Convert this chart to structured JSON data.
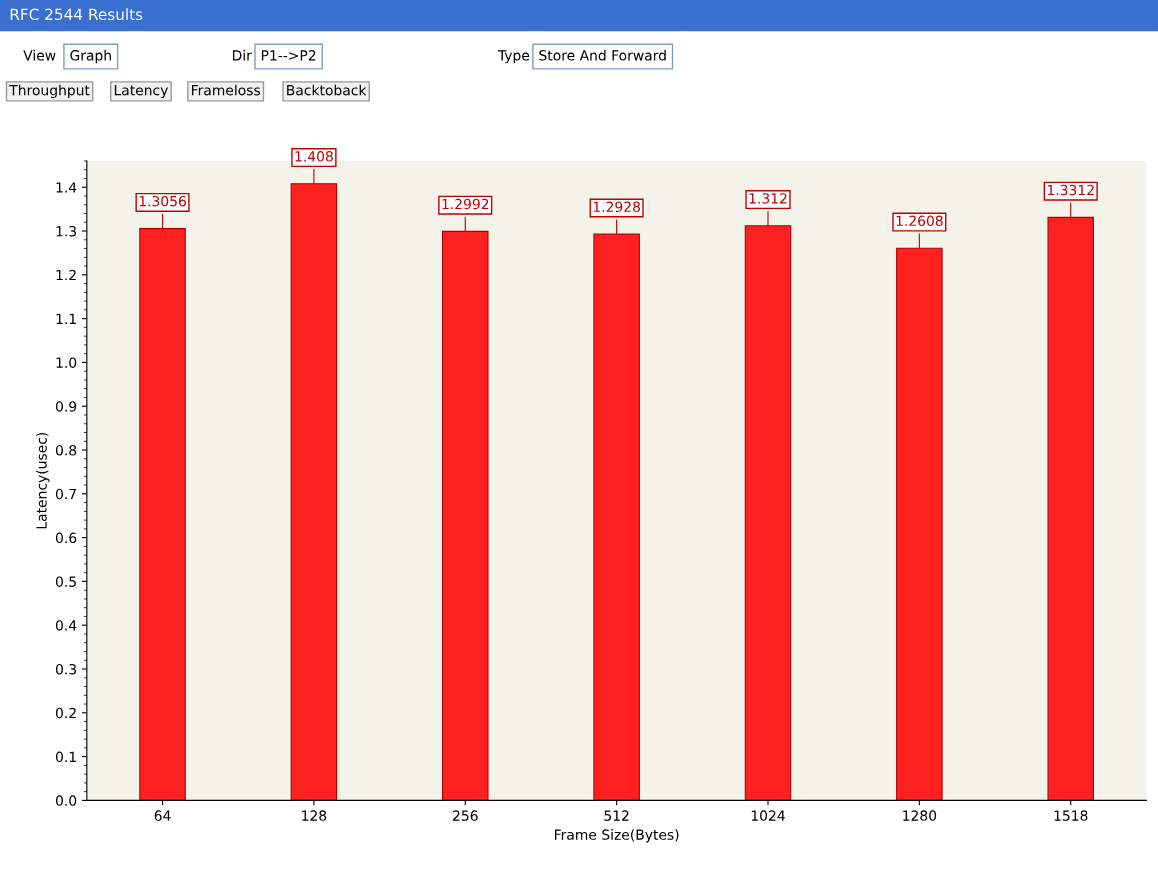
{
  "chart_data": {
    "type": "bar",
    "title": "RFC 2544 Results",
    "annotations": [
      "View",
      "Graph",
      "Dir",
      "P1-->P2",
      "Type",
      "Store And Forward",
      "Throughput",
      "Latency",
      "Frameloss",
      "Backtoback"
    ],
    "xlabel": "Frame Size(Bytes)",
    "ylabel": "Latency(usec)",
    "categories": [
      "64",
      "128",
      "256",
      "512",
      "1024",
      "1280",
      "1518"
    ],
    "values": [
      1.3056,
      1.408,
      1.2992,
      1.2928,
      1.312,
      1.2608,
      1.3312
    ],
    "color": "#ff2020",
    "data_labels": true,
    "grid": false,
    "ylim": [
      0,
      1.46
    ],
    "yticks": [
      {
        "value": 0,
        "label": "0.0"
      },
      0.1,
      0.2,
      0.3,
      0.4,
      0.5,
      0.6,
      0.7,
      0.8,
      0.9,
      {
        "value": 1,
        "label": "1.0"
      },
      1.1,
      1.2,
      1.3,
      1.4
    ]
  }
}
